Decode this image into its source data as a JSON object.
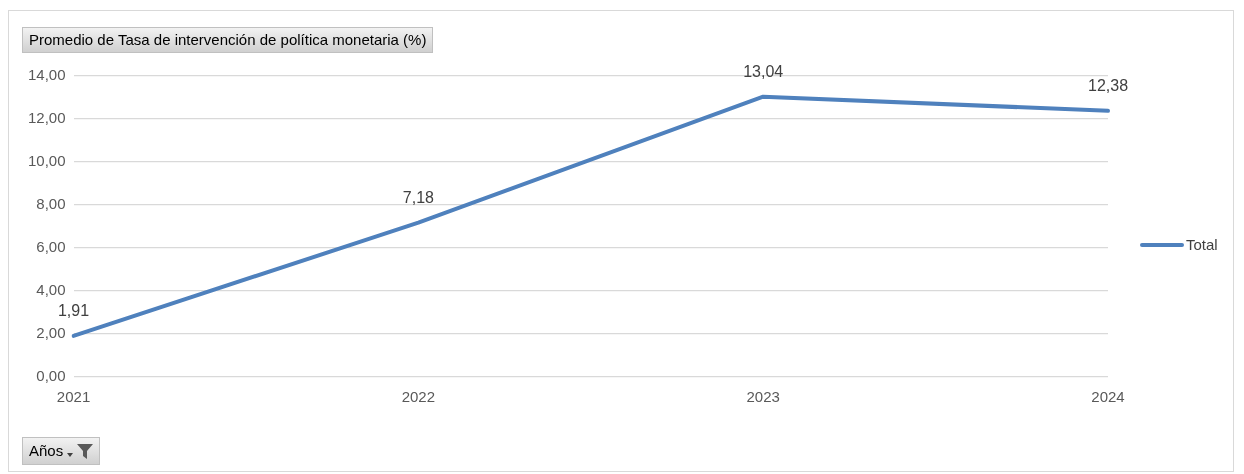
{
  "chart_data": {
    "type": "line",
    "title": "Promedio de Tasa de intervención de política monetaria (%)",
    "xlabel": "Años",
    "categories": [
      "2021",
      "2022",
      "2023",
      "2024"
    ],
    "series": [
      {
        "name": "Total",
        "color": "#4f81bd",
        "values": [
          1.91,
          7.18,
          13.04,
          12.38
        ]
      }
    ],
    "value_labels": [
      "1,91",
      "7,18",
      "13,04",
      "12,38"
    ],
    "ylim": [
      0,
      14
    ],
    "yticks": [
      {
        "value": 0,
        "label": "0,00"
      },
      {
        "value": 2,
        "label": "2,00"
      },
      {
        "value": 4,
        "label": "4,00"
      },
      {
        "value": 6,
        "label": "6,00"
      },
      {
        "value": 8,
        "label": "8,00"
      },
      {
        "value": 10,
        "label": "10,00"
      },
      {
        "value": 12,
        "label": "12,00"
      },
      {
        "value": 14,
        "label": "14,00"
      }
    ],
    "grid": "y",
    "legend": "right",
    "marker": "none",
    "line_style": "solid"
  }
}
